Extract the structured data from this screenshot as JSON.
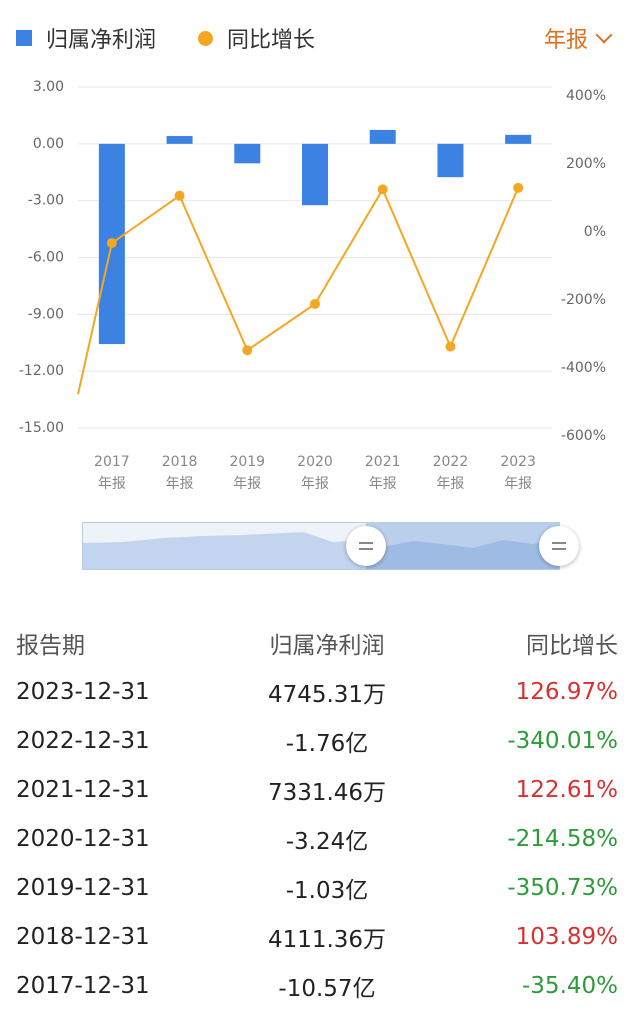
{
  "legend": {
    "profit_label": "归属净利润",
    "growth_label": "同比增长"
  },
  "period_selector": {
    "label": "年报"
  },
  "chart_data": {
    "type": "bar+line",
    "categories": [
      "2017",
      "2018",
      "2019",
      "2020",
      "2021",
      "2022",
      "2023"
    ],
    "category_sublabel": "年报",
    "series": [
      {
        "name": "归属净利润",
        "type": "bar",
        "axis": "left",
        "values": [
          -10.57,
          0.4111,
          -1.03,
          -3.24,
          0.7331,
          -1.76,
          0.4745
        ]
      },
      {
        "name": "同比增长",
        "type": "line",
        "axis": "right",
        "values": [
          -35.4,
          103.89,
          -350.73,
          -214.58,
          122.61,
          -340.01,
          126.97
        ]
      }
    ],
    "left_axis": {
      "ticks": [
        "3.00",
        "0.00",
        "-3.00",
        "-6.00",
        "-9.00",
        "-12.00",
        "-15.00"
      ],
      "ylim": [
        -15,
        3
      ]
    },
    "right_axis": {
      "ticks": [
        "400%",
        "200%",
        "0%",
        "-200%",
        "-400%",
        "-600%"
      ],
      "ylim": [
        -600,
        400
      ]
    },
    "line_start_value": -480,
    "grid": true,
    "colors": {
      "bar": "#3b82e2",
      "line": "#f5a623",
      "grid": "#e8e8e8"
    }
  },
  "table": {
    "headers": {
      "date": "报告期",
      "profit": "归属净利润",
      "growth": "同比增长"
    },
    "rows": [
      {
        "date": "2023-12-31",
        "profit": "4745.31万",
        "growth": "126.97%",
        "trend": "pos"
      },
      {
        "date": "2022-12-31",
        "profit": "-1.76亿",
        "growth": "-340.01%",
        "trend": "neg"
      },
      {
        "date": "2021-12-31",
        "profit": "7331.46万",
        "growth": "122.61%",
        "trend": "pos"
      },
      {
        "date": "2020-12-31",
        "profit": "-3.24亿",
        "growth": "-214.58%",
        "trend": "neg"
      },
      {
        "date": "2019-12-31",
        "profit": "-1.03亿",
        "growth": "-350.73%",
        "trend": "neg"
      },
      {
        "date": "2018-12-31",
        "profit": "4111.36万",
        "growth": "103.89%",
        "trend": "pos"
      },
      {
        "date": "2017-12-31",
        "profit": "-10.57亿",
        "growth": "-35.40%",
        "trend": "neg"
      }
    ]
  },
  "colors": {
    "positive": "#d83030",
    "negative": "#2e9b3a",
    "accent": "#e07020"
  }
}
